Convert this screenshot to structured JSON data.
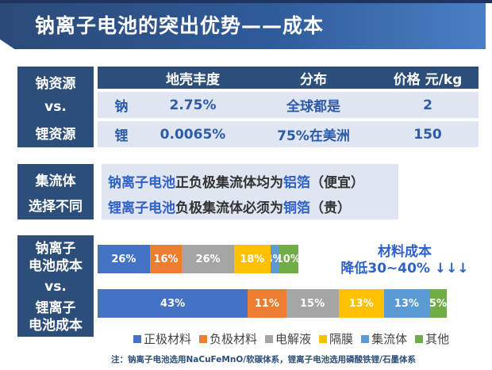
{
  "title": "钠离子电池的突出优势——成本",
  "resource_table": {
    "row_labels": [
      "钠资源",
      "vs.",
      "锂资源"
    ],
    "headers": [
      "地壳丰度",
      "分布",
      "价格 元/kg"
    ],
    "rows": [
      {
        "element": "钠",
        "abundance": "2.75%",
        "distribution": "全球都是",
        "price": "2"
      },
      {
        "element": "锂",
        "abundance": "0.0065%",
        "distribution": "75%在美洲",
        "price": "150"
      }
    ]
  },
  "current_collector": {
    "label_line1": "集流体",
    "label_line2": "选择不同",
    "line1": {
      "battery": "钠离子电池",
      "text": "正负极集流体均为",
      "material": "铝箔",
      "note": "（便宜）"
    },
    "line2": {
      "battery": "锂离子电池",
      "text": "负极集流体必须为",
      "material": "铜箔",
      "note": "（贵）"
    }
  },
  "cost_section": {
    "label_top_line1": "钠离子",
    "label_top_line2": "电池成本",
    "label_vs": "vs.",
    "label_bottom_line1": "锂离子",
    "label_bottom_line2": "电池成本",
    "reduction_line1": "材料成本",
    "reduction_line2": "降低30~40% ↓↓↓"
  },
  "chart_data": {
    "type": "bar",
    "orientation": "horizontal",
    "stacked": true,
    "normalized": true,
    "categories": [
      "钠离子电池成本",
      "锂离子电池成本"
    ],
    "series": [
      {
        "name": "正极材料",
        "color": "#4472c4",
        "values": [
          26,
          43
        ],
        "labels": [
          "26%",
          "43%"
        ]
      },
      {
        "name": "负极材料",
        "color": "#ed7d31",
        "values": [
          16,
          11
        ],
        "labels": [
          "16%",
          "11%"
        ]
      },
      {
        "name": "电解液",
        "color": "#a5a5a5",
        "values": [
          26,
          15
        ],
        "labels": [
          "26%",
          "15%"
        ]
      },
      {
        "name": "隔膜",
        "color": "#ffc000",
        "values": [
          18,
          13
        ],
        "labels": [
          "18%",
          "13%"
        ]
      },
      {
        "name": "集流体",
        "color": "#5b9bd5",
        "values": [
          4,
          13
        ],
        "labels": [
          "4%",
          "13%"
        ]
      },
      {
        "name": "其他",
        "color": "#70ad47",
        "values": [
          10,
          5
        ],
        "labels": [
          "10%",
          "5%"
        ]
      }
    ],
    "legend_position": "bottom",
    "grid": false
  },
  "note": "注：钠离子电池选用NaCuFeMnO/软碳体系，锂离子电池选用磷酸铁锂/石墨体系"
}
